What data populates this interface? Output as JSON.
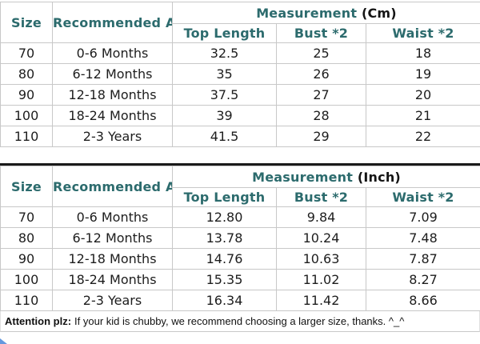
{
  "colors": {
    "header_teal": "#2c6b6d",
    "value_text": "#1d1d1d",
    "grid_line": "#c8c8c8",
    "divider_black": "#1a1a1a",
    "corner_blue": "#4a86d8"
  },
  "chart_data": [
    {
      "type": "table",
      "title": "Measurement (Cm)",
      "measurement_label": "Measurement",
      "unit_label": "(Cm)",
      "size_header": "Size",
      "age_header": "Recommended Age",
      "columns": [
        "Top Length",
        "Bust *2",
        "Waist *2"
      ],
      "rows": [
        [
          "70",
          "0-6 Months",
          "32.5",
          "25",
          "18"
        ],
        [
          "80",
          "6-12 Months",
          "35",
          "26",
          "19"
        ],
        [
          "90",
          "12-18 Months",
          "37.5",
          "27",
          "20"
        ],
        [
          "100",
          "18-24 Months",
          "39",
          "28",
          "21"
        ],
        [
          "110",
          "2-3 Years",
          "41.5",
          "29",
          "22"
        ]
      ]
    },
    {
      "type": "table",
      "title": "Measurement (Inch)",
      "measurement_label": "Measurement",
      "unit_label": "(Inch)",
      "size_header": "Size",
      "age_header": "Recommended Age",
      "columns": [
        "Top Length",
        "Bust *2",
        "Waist *2"
      ],
      "rows": [
        [
          "70",
          "0-6 Months",
          "12.80",
          "9.84",
          "7.09"
        ],
        [
          "80",
          "6-12 Months",
          "13.78",
          "10.24",
          "7.48"
        ],
        [
          "90",
          "12-18 Months",
          "14.76",
          "10.63",
          "7.87"
        ],
        [
          "100",
          "18-24 Months",
          "15.35",
          "11.02",
          "8.27"
        ],
        [
          "110",
          "2-3 Years",
          "16.34",
          "11.42",
          "8.66"
        ]
      ]
    }
  ],
  "note": {
    "bold_prefix": "Attention plz:",
    "text": "If your kid is chubby, we recommend choosing a larger size, thanks. ^_^"
  }
}
